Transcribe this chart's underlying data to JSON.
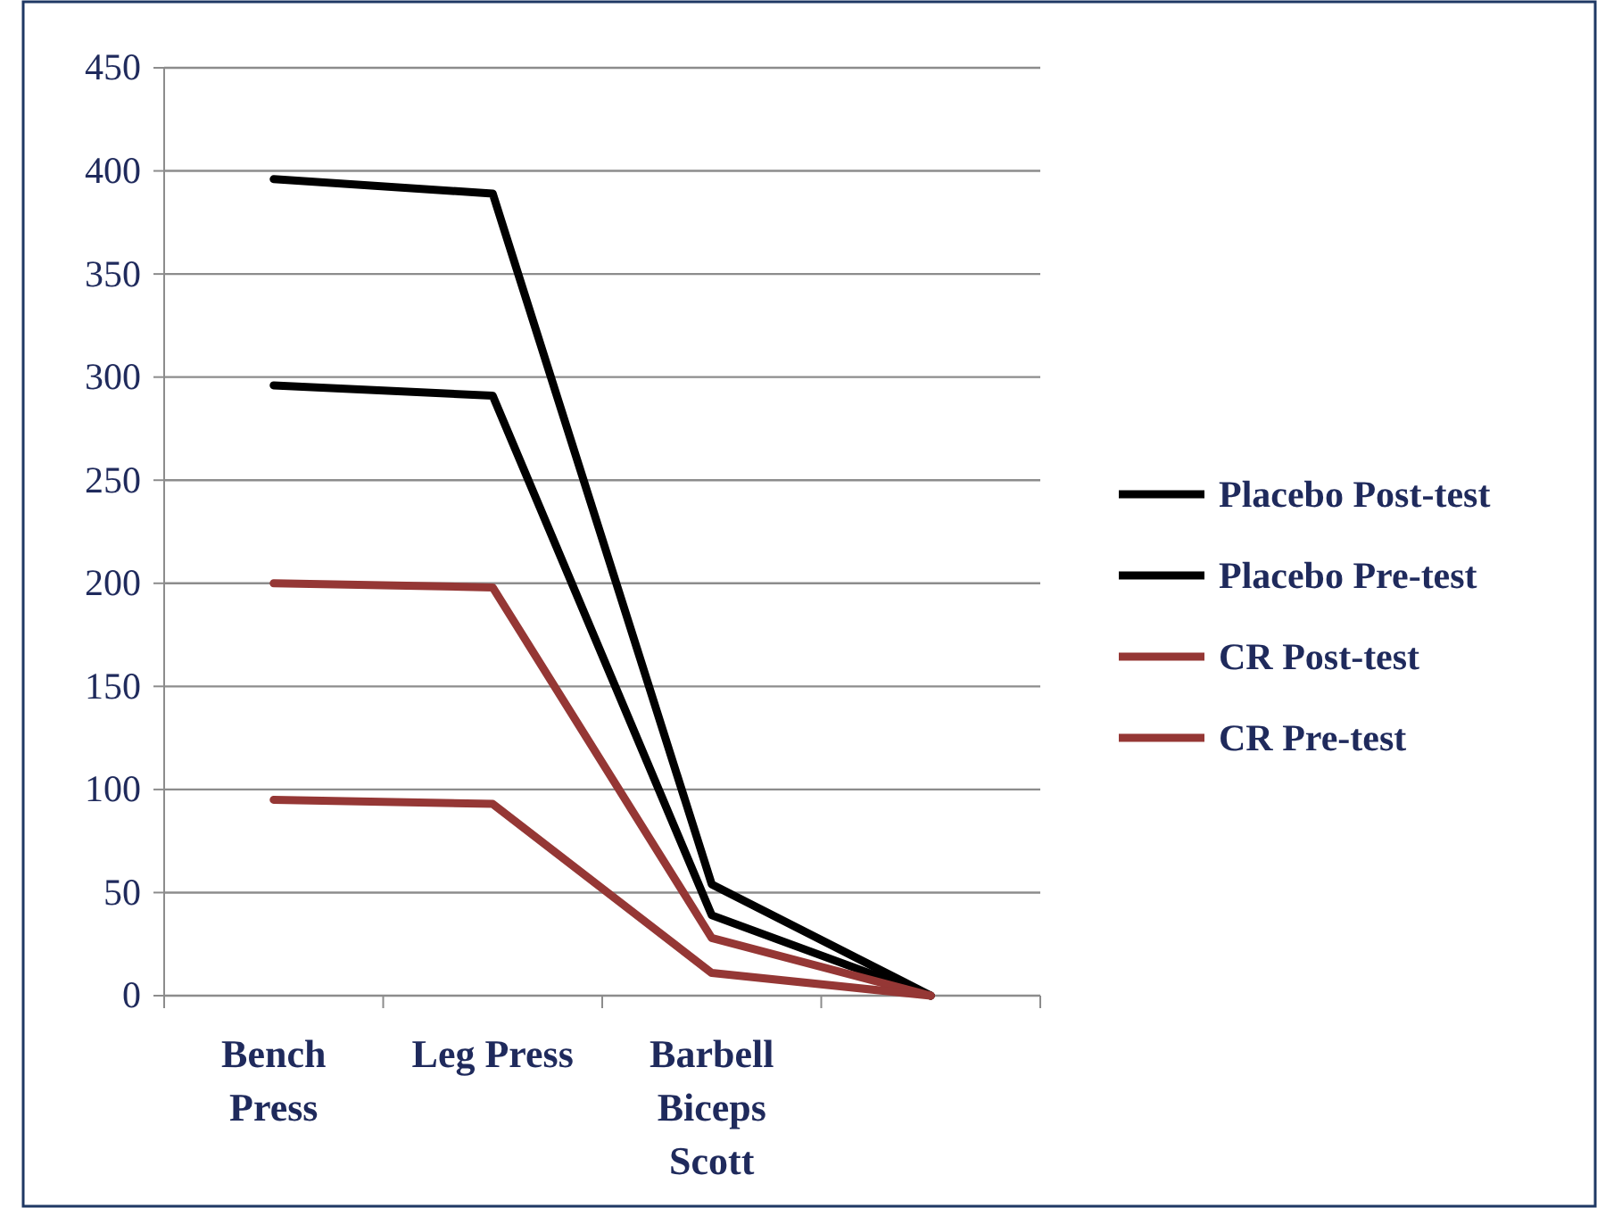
{
  "chart_data": {
    "type": "line",
    "categories": [
      "Bench Press",
      "Leg Press",
      "Barbell Biceps Scott",
      null
    ],
    "series": [
      {
        "name": "Placebo Post-test",
        "color": "#000000",
        "values": [
          396,
          389,
          54,
          0
        ]
      },
      {
        "name": "Placebo Pre-test",
        "color": "#000000",
        "values": [
          296,
          291,
          39,
          0
        ]
      },
      {
        "name": "CR Post-test",
        "color": "#953735",
        "values": [
          200,
          198,
          28,
          0
        ]
      },
      {
        "name": "CR Pre-test",
        "color": "#953735",
        "values": [
          95,
          93,
          11,
          0
        ]
      }
    ],
    "ylim": [
      0,
      450
    ],
    "yticks": [
      0,
      50,
      100,
      150,
      200,
      250,
      300,
      350,
      400,
      450
    ],
    "grid": "y",
    "legend": "right",
    "marker": "none",
    "line_style": "solid"
  }
}
